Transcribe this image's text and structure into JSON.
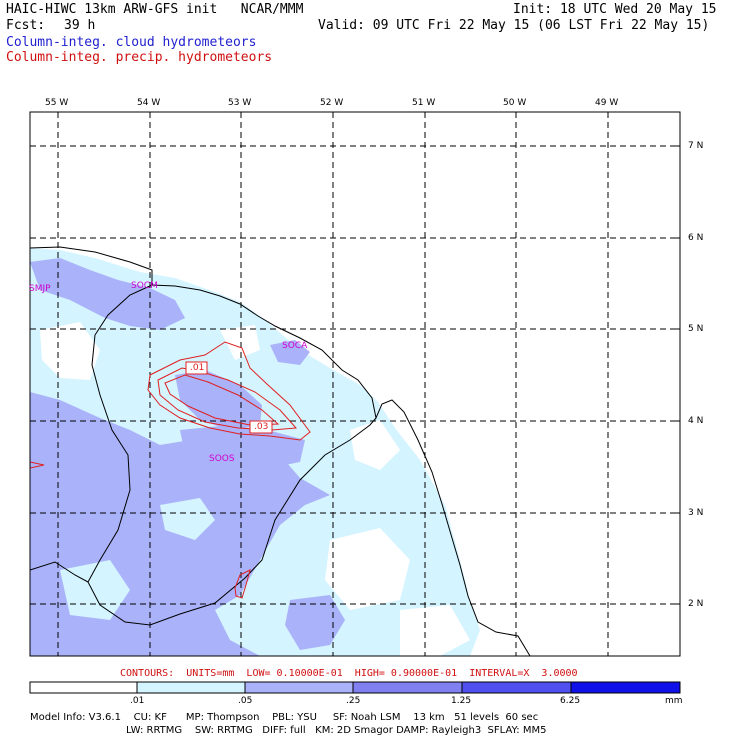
{
  "header": {
    "model_title": "HAIC-HIWC 13km ARW-GFS init   NCAR/MMM",
    "init": "Init: 18 UTC Wed 20 May 15",
    "fcst_label": "Fcst:",
    "fcst_value": "39 h",
    "valid": "Valid: 09 UTC Fri 22 May 15 (06 LST Fri 22 May 15)",
    "legend_cloud": "Column-integ. cloud hydrometeors",
    "legend_precip": "Column-integ. precip. hydrometeors"
  },
  "map": {
    "lon_labels": [
      "55 W",
      "54 W",
      "53 W",
      "52 W",
      "51 W",
      "50 W",
      "49 W"
    ],
    "lat_labels": [
      "7 N",
      "6 N",
      "5 N",
      "4 N",
      "3 N",
      "2 N"
    ],
    "stations": [
      "SMJP",
      "SOCM",
      "SOCA",
      "SOOS"
    ],
    "contour_labels": [
      ".01",
      ".03"
    ]
  },
  "contour_info": "CONTOURS:  UNITS=mm  LOW= 0.10000E-01  HIGH= 0.90000E-01  INTERVAL=X  3.0000",
  "colorbar": {
    "ticks": [
      ".01",
      ".05",
      ".25",
      "1.25",
      "6.25"
    ],
    "unit": "mm",
    "colors": [
      "#ffffff",
      "#d4f4ff",
      "#aab2fa",
      "#8080f0",
      "#5050f0",
      "#1010e8"
    ]
  },
  "footer": {
    "line1": "Model Info: V3.6.1    CU: KF      MP: Thompson    PBL: YSU     SF: Noah LSM    13 km   51 levels  60 sec",
    "line2": "LW: RRTMG    SW: RRTMG   DIFF: full   KM: 2D Smagor DAMP: Rayleigh3  SFLAY: MM5"
  },
  "colors": {
    "cloud_light": "#d4f4ff",
    "cloud_mid": "#aab2fa",
    "contour": "#e02020",
    "station": "#d000d0"
  }
}
